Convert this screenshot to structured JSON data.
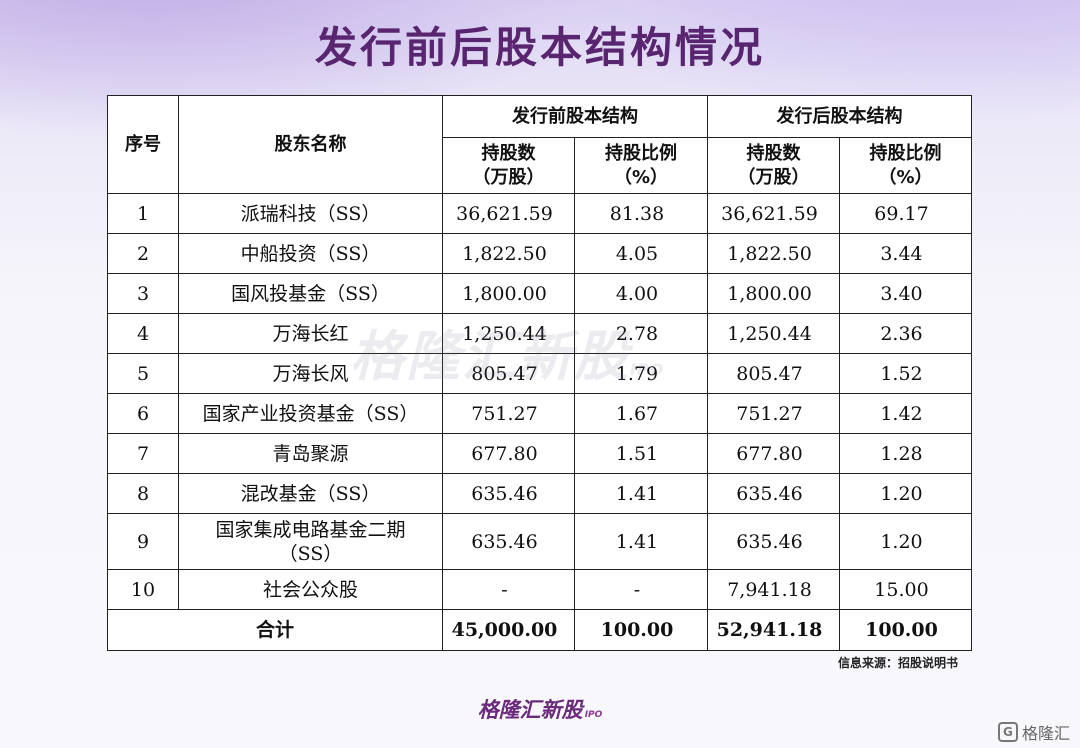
{
  "title": "发行前后股本结构情况",
  "table": {
    "headers": {
      "seq": "序号",
      "name": "股东名称",
      "before": "发行前股本结构",
      "after": "发行后股本结构",
      "shares": "持股数",
      "shares_unit": "（万股）",
      "ratio": "持股比例",
      "ratio_unit": "（%）"
    },
    "rows": [
      {
        "seq": "1",
        "name": "派瑞科技（SS）",
        "pre_shares": "36,621.59",
        "pre_ratio": "81.38",
        "post_shares": "36,621.59",
        "post_ratio": "69.17"
      },
      {
        "seq": "2",
        "name": "中船投资（SS）",
        "pre_shares": "1,822.50",
        "pre_ratio": "4.05",
        "post_shares": "1,822.50",
        "post_ratio": "3.44"
      },
      {
        "seq": "3",
        "name": "国风投基金（SS）",
        "pre_shares": "1,800.00",
        "pre_ratio": "4.00",
        "post_shares": "1,800.00",
        "post_ratio": "3.40"
      },
      {
        "seq": "4",
        "name": "万海长红",
        "pre_shares": "1,250.44",
        "pre_ratio": "2.78",
        "post_shares": "1,250.44",
        "post_ratio": "2.36"
      },
      {
        "seq": "5",
        "name": "万海长风",
        "pre_shares": "805.47",
        "pre_ratio": "1.79",
        "post_shares": "805.47",
        "post_ratio": "1.52"
      },
      {
        "seq": "6",
        "name": "国家产业投资基金（SS）",
        "pre_shares": "751.27",
        "pre_ratio": "1.67",
        "post_shares": "751.27",
        "post_ratio": "1.42"
      },
      {
        "seq": "7",
        "name": "青岛聚源",
        "pre_shares": "677.80",
        "pre_ratio": "1.51",
        "post_shares": "677.80",
        "post_ratio": "1.28"
      },
      {
        "seq": "8",
        "name": "混改基金（SS）",
        "pre_shares": "635.46",
        "pre_ratio": "1.41",
        "post_shares": "635.46",
        "post_ratio": "1.20"
      },
      {
        "seq": "9",
        "name": "国家集成电路基金二期",
        "name2": "（SS）",
        "pre_shares": "635.46",
        "pre_ratio": "1.41",
        "post_shares": "635.46",
        "post_ratio": "1.20"
      },
      {
        "seq": "10",
        "name": "社会公众股",
        "pre_shares": "-",
        "pre_ratio": "-",
        "post_shares": "7,941.18",
        "post_ratio": "15.00"
      }
    ],
    "total": {
      "label": "合计",
      "pre_shares": "45,000.00",
      "pre_ratio": "100.00",
      "post_shares": "52,941.18",
      "post_ratio": "100.00"
    }
  },
  "watermark": {
    "text": "格隆汇新股",
    "sub": "IPO"
  },
  "source": "信息来源：招股说明书",
  "logo": {
    "text": "格隆汇新股",
    "sub": "IPO"
  },
  "corner_label": "格隆汇",
  "colors": {
    "title": "#5a2570",
    "background_top": "#ded6f3",
    "logo": "#6b2a7c"
  }
}
